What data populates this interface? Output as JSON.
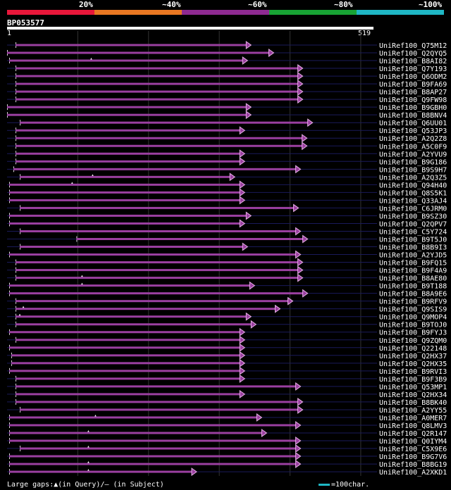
{
  "legend": {
    "labels": [
      "20%",
      "~40%",
      "~60%",
      "~80%",
      "~100%"
    ],
    "colors": [
      "#e8173a",
      "#e87722",
      "#8e2a91",
      "#18a334",
      "#1fb7c5"
    ]
  },
  "query": {
    "name": "BP053577",
    "length": 519,
    "start_label": "1",
    "end_label": "519"
  },
  "chart_data": {
    "type": "alignment",
    "query_length": 519,
    "bar_color": "#9a3fa0",
    "row_line_color": "#1a1a5a",
    "hits": [
      {
        "name": "UniRef100_Q75M12",
        "start": 13,
        "end": 340,
        "gaps": []
      },
      {
        "name": "UniRef100_Q2QYQ5",
        "start": 1,
        "end": 372,
        "gaps": [
          {
            "type": "query",
            "pos": 120
          }
        ]
      },
      {
        "name": "UniRef100_B8AI82",
        "start": 4,
        "end": 335,
        "gaps": []
      },
      {
        "name": "UniRef100_Q7Y193",
        "start": 13,
        "end": 413,
        "gaps": []
      },
      {
        "name": "UniRef100_Q6ODM2",
        "start": 13,
        "end": 413,
        "gaps": []
      },
      {
        "name": "UniRef100_B9FA69",
        "start": 13,
        "end": 413,
        "gaps": []
      },
      {
        "name": "UniRef100_B8AP27",
        "start": 13,
        "end": 413,
        "gaps": []
      },
      {
        "name": "UniRef100_Q9FW98",
        "start": 13,
        "end": 413,
        "gaps": []
      },
      {
        "name": "UniRef100_B9GBH0",
        "start": 1,
        "end": 340,
        "gaps": []
      },
      {
        "name": "UniRef100_B8BNV4",
        "start": 1,
        "end": 340,
        "gaps": []
      },
      {
        "name": "UniRef100_Q6UU01",
        "start": 19,
        "end": 427,
        "gaps": []
      },
      {
        "name": "UniRef100_Q53JP3",
        "start": 13,
        "end": 331,
        "gaps": []
      },
      {
        "name": "UniRef100_A2Q2Z8",
        "start": 13,
        "end": 419,
        "gaps": []
      },
      {
        "name": "UniRef100_A5C0F9",
        "start": 13,
        "end": 419,
        "gaps": []
      },
      {
        "name": "UniRef100_A2YVU9",
        "start": 13,
        "end": 331,
        "gaps": []
      },
      {
        "name": "UniRef100_B9G186",
        "start": 13,
        "end": 331,
        "gaps": []
      },
      {
        "name": "UniRef100_B9S9H7",
        "start": 10,
        "end": 410,
        "gaps": [
          {
            "type": "query",
            "pos": 122
          }
        ]
      },
      {
        "name": "UniRef100_A2Q3Z5",
        "start": 19,
        "end": 317,
        "gaps": [
          {
            "type": "query",
            "pos": 93
          }
        ]
      },
      {
        "name": "UniRef100_Q94H40",
        "start": 4,
        "end": 331,
        "gaps": []
      },
      {
        "name": "UniRef100_Q8S5K1",
        "start": 4,
        "end": 331,
        "gaps": []
      },
      {
        "name": "UniRef100_Q33AJ4",
        "start": 4,
        "end": 331,
        "gaps": []
      },
      {
        "name": "UniRef100_C6JRM0",
        "start": 19,
        "end": 407,
        "gaps": []
      },
      {
        "name": "UniRef100_B9SZ30",
        "start": 4,
        "end": 340,
        "gaps": []
      },
      {
        "name": "UniRef100_Q2QPV7",
        "start": 4,
        "end": 331,
        "gaps": []
      },
      {
        "name": "UniRef100_C5Y724",
        "start": 19,
        "end": 410,
        "gaps": []
      },
      {
        "name": "UniRef100_B9T5J0",
        "start": 99,
        "end": 420,
        "gaps": []
      },
      {
        "name": "UniRef100_B8B9I3",
        "start": 19,
        "end": 335,
        "gaps": []
      },
      {
        "name": "UniRef100_A2YJD5",
        "start": 4,
        "end": 410,
        "gaps": []
      },
      {
        "name": "UniRef100_B9FQ15",
        "start": 13,
        "end": 413,
        "gaps": []
      },
      {
        "name": "UniRef100_B9F4A9",
        "start": 13,
        "end": 413,
        "gaps": [
          {
            "type": "query",
            "pos": 107
          }
        ]
      },
      {
        "name": "UniRef100_B8AE80",
        "start": 13,
        "end": 413,
        "gaps": [
          {
            "type": "query",
            "pos": 107
          }
        ]
      },
      {
        "name": "UniRef100_B9T188",
        "start": 4,
        "end": 345,
        "gaps": []
      },
      {
        "name": "UniRef100_B8A9E6",
        "start": 4,
        "end": 420,
        "gaps": []
      },
      {
        "name": "UniRef100_B9RFV9",
        "start": 13,
        "end": 399,
        "gaps": [
          {
            "type": "query",
            "pos": 24
          }
        ]
      },
      {
        "name": "UniRef100_Q9SIS9",
        "start": 13,
        "end": 381,
        "gaps": [
          {
            "type": "query",
            "pos": 19
          }
        ]
      },
      {
        "name": "UniRef100_Q9MOP4",
        "start": 13,
        "end": 340,
        "gaps": []
      },
      {
        "name": "UniRef100_B9TOJ0",
        "start": 13,
        "end": 347,
        "gaps": []
      },
      {
        "name": "UniRef100_B9FYJ3",
        "start": 4,
        "end": 331,
        "gaps": []
      },
      {
        "name": "UniRef100_Q9ZQM0",
        "start": 13,
        "end": 331,
        "gaps": []
      },
      {
        "name": "UniRef100_Q22148",
        "start": 4,
        "end": 331,
        "gaps": []
      },
      {
        "name": "UniRef100_Q2HX37",
        "start": 7,
        "end": 331,
        "gaps": []
      },
      {
        "name": "UniRef100_Q2HX35",
        "start": 7,
        "end": 331,
        "gaps": []
      },
      {
        "name": "UniRef100_B9RVI3",
        "start": 4,
        "end": 331,
        "gaps": []
      },
      {
        "name": "UniRef100_B9F3B9",
        "start": 13,
        "end": 331,
        "gaps": []
      },
      {
        "name": "UniRef100_Q53MP1",
        "start": 13,
        "end": 410,
        "gaps": []
      },
      {
        "name": "UniRef100_Q2HX34",
        "start": 13,
        "end": 331,
        "gaps": []
      },
      {
        "name": "UniRef100_B8BK40",
        "start": 13,
        "end": 413,
        "gaps": []
      },
      {
        "name": "UniRef100_A2YY55",
        "start": 19,
        "end": 413,
        "gaps": [
          {
            "type": "query",
            "pos": 126
          }
        ]
      },
      {
        "name": "UniRef100_A0MER7",
        "start": 4,
        "end": 355,
        "gaps": []
      },
      {
        "name": "UniRef100_Q8LMV3",
        "start": 4,
        "end": 410,
        "gaps": [
          {
            "type": "query",
            "pos": 116
          }
        ]
      },
      {
        "name": "UniRef100_Q2R147",
        "start": 4,
        "end": 362,
        "gaps": []
      },
      {
        "name": "UniRef100_Q0IYM4",
        "start": 4,
        "end": 410,
        "gaps": [
          {
            "type": "query",
            "pos": 116
          }
        ]
      },
      {
        "name": "UniRef100_C5X9E6",
        "start": 19,
        "end": 410,
        "gaps": []
      },
      {
        "name": "UniRef100_B9G7V6",
        "start": 4,
        "end": 410,
        "gaps": [
          {
            "type": "query",
            "pos": 116
          }
        ]
      },
      {
        "name": "UniRef100_B8BG19",
        "start": 4,
        "end": 410,
        "gaps": [
          {
            "type": "query",
            "pos": 116
          }
        ]
      },
      {
        "name": "UniRef100_A2XKD1",
        "start": 4,
        "end": 263,
        "gaps": []
      }
    ]
  },
  "footer": {
    "gaps_text": "Large gaps:▲(in Query)/– (in Subject)",
    "scale_text": "=100char."
  }
}
